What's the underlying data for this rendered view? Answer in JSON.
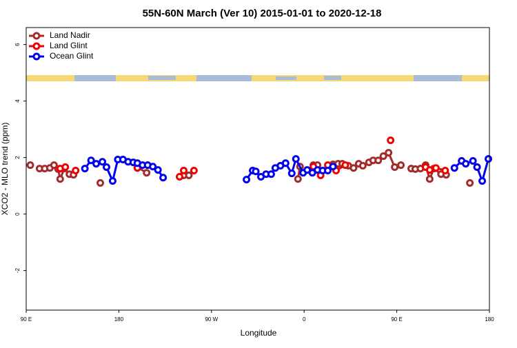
{
  "chart_data": {
    "type": "line",
    "title": "55N-60N March (Ver 10)   2015-01-01 to 2020-12-18",
    "xlabel": "Longitude",
    "ylabel": "XCO2 - MLO trend (ppm)",
    "xlim": [
      90,
      540
    ],
    "ylim": [
      -3.4,
      6.6
    ],
    "xticks": [
      {
        "value": 90,
        "label": "90 E"
      },
      180,
      {
        "value": 270,
        "label": "90 W"
      },
      {
        "value": 360,
        "label": "0"
      },
      {
        "value": 450,
        "label": "90 E"
      },
      {
        "value": 540,
        "label": "180"
      }
    ],
    "yticks": [
      -2,
      0,
      2,
      4,
      6
    ],
    "legend": "top-left",
    "series": [
      {
        "name": "Land Nadir",
        "color": "#a52a2a",
        "x": [
          94,
          null,
          103,
          108,
          113,
          117,
          121,
          123,
          127,
          132,
          136,
          null,
          162,
          null,
          198,
          207,
          null,
          243,
          248,
          null,
          354,
          356,
          null,
          369,
          373,
          null,
          388,
          393,
          397,
          403,
          408,
          413,
          417,
          423,
          427,
          432,
          437,
          442,
          448,
          454,
          null,
          464,
          468,
          473,
          478,
          482,
          486,
          493,
          498,
          null,
          521
        ],
        "values": [
          1.73,
          null,
          1.61,
          1.61,
          1.63,
          1.73,
          1.59,
          1.24,
          1.61,
          1.41,
          1.39,
          null,
          1.1,
          null,
          1.66,
          1.46,
          null,
          1.37,
          1.37,
          null,
          1.24,
          1.68,
          null,
          1.73,
          1.73,
          null,
          1.76,
          1.78,
          1.78,
          1.71,
          1.63,
          1.78,
          1.71,
          1.83,
          1.9,
          1.9,
          2.05,
          2.17,
          1.66,
          1.73,
          null,
          1.61,
          1.59,
          1.61,
          1.73,
          1.24,
          1.61,
          1.41,
          1.39,
          null,
          1.1
        ]
      },
      {
        "name": "Land Glint",
        "color": "#ee0000",
        "x": [
          123,
          128,
          null,
          138,
          null,
          198,
          null,
          239,
          243,
          null,
          253,
          null,
          369,
          376,
          383,
          391,
          400,
          null,
          444,
          null,
          478,
          482,
          488,
          497
        ],
        "values": [
          1.61,
          1.66,
          null,
          1.54,
          null,
          1.63,
          null,
          1.32,
          1.54,
          null,
          1.54,
          null,
          1.68,
          1.37,
          1.73,
          1.54,
          1.73,
          null,
          2.61,
          null,
          1.66,
          1.56,
          1.63,
          1.54
        ]
      },
      {
        "name": "Ocean Glint",
        "color": "#0000ee",
        "x": [
          147,
          153,
          158,
          164,
          168,
          174,
          179,
          184,
          189,
          194,
          198,
          203,
          208,
          213,
          218,
          223,
          null,
          304,
          310,
          313,
          318,
          323,
          328,
          332,
          337,
          342,
          348,
          352,
          359,
          363,
          368,
          373,
          378,
          383,
          388,
          null,
          506,
          513,
          517,
          524,
          528,
          533,
          539
        ],
        "values": [
          1.61,
          1.9,
          1.78,
          1.85,
          1.66,
          1.17,
          1.93,
          1.93,
          1.85,
          1.83,
          1.8,
          1.73,
          1.73,
          1.68,
          1.56,
          1.29,
          null,
          1.22,
          1.54,
          1.51,
          1.32,
          1.41,
          1.41,
          1.63,
          1.71,
          1.8,
          1.44,
          1.95,
          1.46,
          1.56,
          1.46,
          1.56,
          1.54,
          1.54,
          1.68,
          null,
          1.63,
          1.88,
          1.78,
          1.88,
          1.66,
          1.17,
          1.95
        ]
      }
    ]
  }
}
